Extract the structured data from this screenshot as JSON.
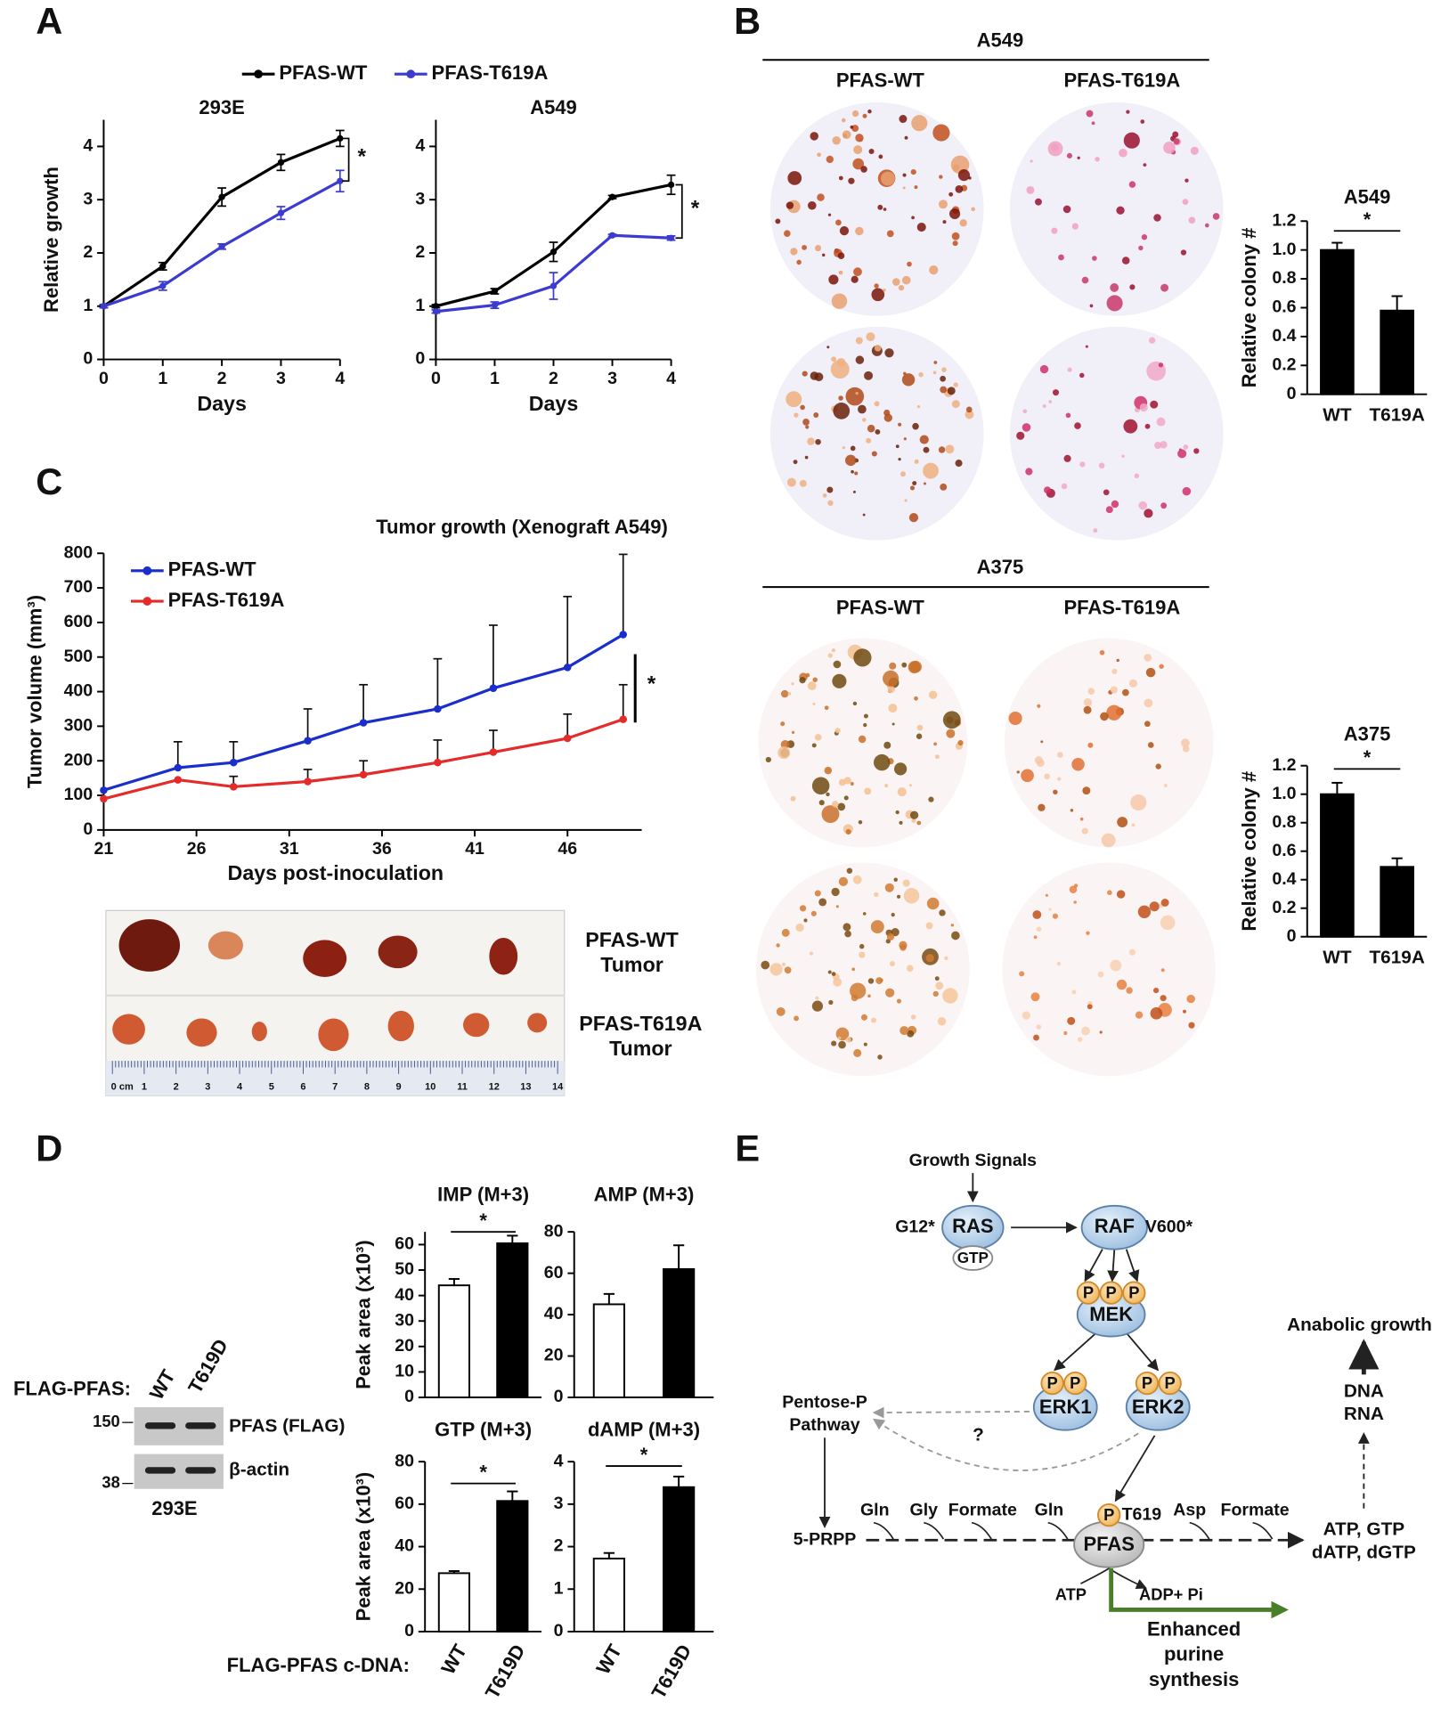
{
  "panel_labels": [
    "A",
    "B",
    "C",
    "D",
    "E"
  ],
  "chart_data": [
    {
      "type": "line",
      "title": "293E",
      "x": [
        0,
        1,
        2,
        3,
        4
      ],
      "xlim": [
        0,
        4
      ],
      "xticks": [
        0,
        1,
        2,
        3,
        4
      ],
      "ylim": [
        0,
        4.5
      ],
      "yticks": [
        0,
        1,
        2,
        3,
        4
      ],
      "xlabel": "Days",
      "ylabel": "Relative growth",
      "annotation": "*",
      "series": [
        {
          "name": "PFAS-WT",
          "color": "#000000",
          "values": [
            1,
            1.75,
            3.05,
            3.7,
            4.15
          ],
          "errors": [
            0.03,
            0.07,
            0.17,
            0.15,
            0.15
          ]
        },
        {
          "name": "PFAS-T619A",
          "color": "#3b3bd0",
          "values": [
            1,
            1.38,
            2.12,
            2.75,
            3.35
          ],
          "errors": [
            0.03,
            0.08,
            0.05,
            0.12,
            0.2
          ]
        }
      ]
    },
    {
      "type": "line",
      "title": "A549",
      "x": [
        0,
        1,
        2,
        3,
        4
      ],
      "xlim": [
        0,
        4
      ],
      "xticks": [
        0,
        1,
        2,
        3,
        4
      ],
      "ylim": [
        0,
        4.5
      ],
      "yticks": [
        0,
        1,
        2,
        3,
        4
      ],
      "xlabel": "Days",
      "annotation": "*",
      "series": [
        {
          "color": "#000000",
          "values": [
            1,
            1.28,
            2.02,
            3.05,
            3.28
          ],
          "errors": [
            0.03,
            0.05,
            0.18,
            0.03,
            0.18
          ]
        },
        {
          "color": "#3b3bd0",
          "values": [
            0.9,
            1.02,
            1.38,
            2.33,
            2.28
          ],
          "errors": [
            0.03,
            0.06,
            0.25,
            0.02,
            0.04
          ]
        }
      ]
    },
    {
      "type": "bar",
      "title": "A549",
      "categories": [
        "WT",
        "T619A"
      ],
      "values": [
        1.0,
        0.58
      ],
      "errors": [
        0.05,
        0.1
      ],
      "color": "#000000",
      "ylim": [
        0,
        1.2
      ],
      "yticks": [
        0,
        0.2,
        0.4,
        0.6,
        0.8,
        {
          "value": 1,
          "label": "1.0"
        },
        1.2
      ],
      "ylabel": "Relative colony #",
      "annotation": "*"
    },
    {
      "type": "bar",
      "title": "A375",
      "categories": [
        "WT",
        "T619A"
      ],
      "values": [
        1.0,
        0.49
      ],
      "errors": [
        0.08,
        0.06
      ],
      "color": "#000000",
      "ylim": [
        0,
        1.2
      ],
      "yticks": [
        0,
        0.2,
        0.4,
        0.6,
        0.8,
        {
          "value": 1,
          "label": "1.0"
        },
        1.2
      ],
      "ylabel": "Relative colony #",
      "annotation": "*"
    },
    {
      "type": "line",
      "title": "Tumor growth (Xenograft A549)",
      "x": [
        21,
        25,
        28,
        32,
        35,
        39,
        42,
        46,
        49
      ],
      "xlim": [
        21,
        50
      ],
      "xticks": [
        21,
        26,
        31,
        36,
        41,
        46
      ],
      "ylim": [
        0,
        800
      ],
      "yticks": [
        0,
        100,
        200,
        300,
        400,
        500,
        600,
        700,
        800
      ],
      "xlabel": "Days post-inoculation",
      "ylabel": "Tumor volume (mm³)",
      "annotation": "*",
      "error_style": "upper",
      "series": [
        {
          "name": "PFAS-WT",
          "color": "#1a2ecc",
          "values": [
            115,
            180,
            195,
            258,
            310,
            350,
            410,
            470,
            565
          ],
          "errors": [
            null,
            75,
            60,
            92,
            110,
            145,
            182,
            205,
            232
          ]
        },
        {
          "name": "PFAS-T619A",
          "color": "#e52a2a",
          "values": [
            90,
            145,
            125,
            140,
            160,
            195,
            225,
            265,
            320
          ],
          "errors": [
            null,
            null,
            30,
            35,
            40,
            65,
            63,
            70,
            100
          ]
        }
      ]
    },
    {
      "type": "bar",
      "title": "IMP (M+3)",
      "categories": [
        null,
        null
      ],
      "values": [
        44,
        60.5
      ],
      "errors": [
        2.5,
        3
      ],
      "colors": [
        "#ffffff",
        "#000000"
      ],
      "ylim": [
        0,
        65
      ],
      "yticks": [
        0,
        10,
        20,
        30,
        40,
        50,
        60
      ],
      "ylabel": "Peak area (x10³)",
      "annotation": "*"
    },
    {
      "type": "bar",
      "title": "AMP (M+3)",
      "categories": [
        null,
        null
      ],
      "values": [
        45,
        62
      ],
      "errors": [
        5,
        11.5
      ],
      "colors": [
        "#ffffff",
        "#000000"
      ],
      "ylim": [
        0,
        80
      ],
      "yticks": [
        0,
        20,
        40,
        60,
        80
      ]
    },
    {
      "type": "bar",
      "title": "GTP (M+3)",
      "categories": [
        "WT",
        "T619D"
      ],
      "values": [
        27.5,
        61.5
      ],
      "errors": [
        1,
        4.5
      ],
      "colors": [
        "#ffffff",
        "#000000"
      ],
      "ylim": [
        0,
        80
      ],
      "yticks": [
        0,
        20,
        40,
        60,
        80
      ],
      "ylabel": "Peak area (x10³)",
      "annotation": "*"
    },
    {
      "type": "bar",
      "title": "dAMP (M+3)",
      "categories": [
        "WT",
        "T619D"
      ],
      "values": [
        1.72,
        3.4
      ],
      "errors": [
        0.13,
        0.25
      ],
      "colors": [
        "#ffffff",
        "#000000"
      ],
      "ylim": [
        0,
        4
      ],
      "yticks": [
        0,
        1,
        2,
        3,
        4
      ],
      "annotation": "*"
    }
  ],
  "panel_b": {
    "sections": [
      {
        "title": "A549",
        "columns": [
          "PFAS-WT",
          "PFAS-T619A"
        ]
      },
      {
        "title": "A375",
        "columns": [
          "PFAS-WT",
          "PFAS-T619A"
        ]
      }
    ]
  },
  "panel_c_photo": {
    "rows": [
      [
        "PFAS-WT",
        "Tumor"
      ],
      [
        "PFAS-T619A",
        "Tumor"
      ]
    ],
    "ruler": [
      "0 cm",
      1,
      2,
      3,
      4,
      5,
      6,
      7,
      8,
      9,
      10,
      11,
      12,
      13,
      14
    ]
  },
  "panel_d": {
    "cdna_label": "FLAG-PFAS c-DNA:",
    "blot": {
      "row_label": "FLAG-PFAS:",
      "lanes": [
        "WT",
        "T619D"
      ],
      "markers": [
        150,
        38
      ],
      "bands": [
        "PFAS (FLAG)",
        "β-actin"
      ],
      "cell_line": "293E"
    }
  },
  "panel_e": {
    "phospho": "P",
    "nodes": [
      "Growth Signals",
      "G12*",
      "RAS",
      "GTP",
      "RAF",
      "V600*",
      "MEK",
      "ERK1",
      "ERK2",
      [
        "Pentose-P",
        "Pathway"
      ],
      "?",
      "5-PRPP",
      "Gln",
      "Gly",
      "Formate",
      "Gln",
      "T619",
      "Asp",
      "Formate",
      "PFAS",
      "ATP",
      "ADP+ Pi",
      [
        "Enhanced",
        "purine",
        "synthesis"
      ],
      [
        "ATP, GTP",
        "dATP, dGTP"
      ],
      [
        "DNA",
        "RNA"
      ],
      "Anabolic growth"
    ]
  }
}
